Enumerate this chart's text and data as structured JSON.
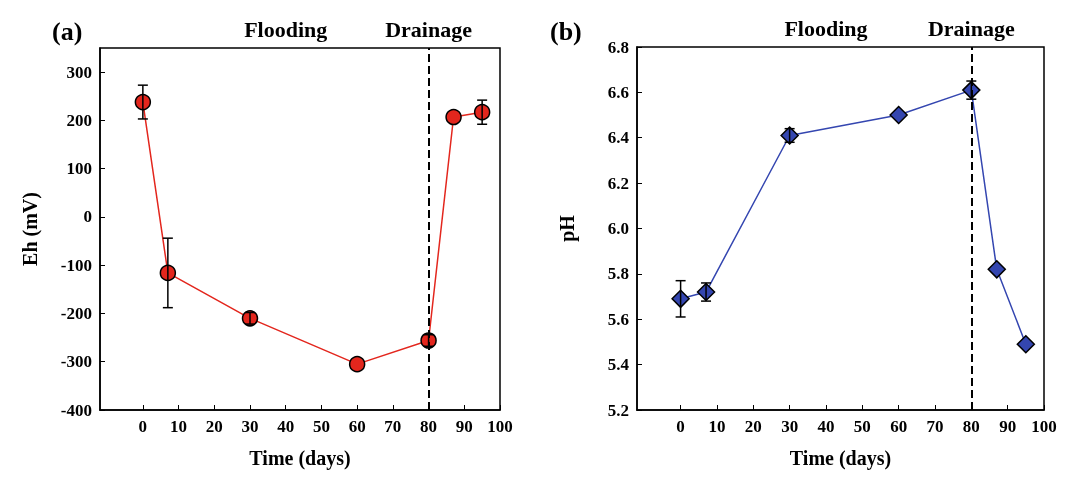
{
  "chart_data": [
    {
      "type": "line",
      "title": "(a)",
      "xlabel": "Time (days)",
      "ylabel": "Eh (mV)",
      "x": [
        0,
        7,
        30,
        60,
        80,
        87,
        95
      ],
      "series": [
        {
          "color": "#e3261d",
          "values": [
            238,
            -116,
            -210,
            -305,
            -256,
            207,
            217
          ],
          "errors": [
            35,
            72,
            12,
            null,
            12,
            null,
            25
          ]
        }
      ],
      "xlim": [
        -12,
        100
      ],
      "xticks": [
        0,
        10,
        20,
        30,
        40,
        50,
        60,
        70,
        80,
        90,
        100
      ],
      "ylim": [
        -400,
        350
      ],
      "yticks": [
        -400,
        -300,
        -200,
        -100,
        0,
        100,
        200,
        300
      ],
      "ref_lines": [
        {
          "axis": "x",
          "value": 80,
          "label": "Drainage",
          "line_style": "dashed",
          "color": "#000000"
        }
      ],
      "annotations": [
        "Flooding"
      ],
      "marker": "circle",
      "grid": false
    },
    {
      "type": "line",
      "title": "(b)",
      "xlabel": "Time (days)",
      "ylabel": "pH",
      "x": [
        0,
        7,
        30,
        60,
        80,
        87,
        95
      ],
      "series": [
        {
          "color": "#3446b0",
          "values": [
            5.69,
            5.72,
            6.41,
            6.5,
            6.61,
            5.82,
            5.49
          ],
          "errors": [
            0.08,
            0.04,
            0.03,
            null,
            0.04,
            null,
            null
          ]
        }
      ],
      "xlim": [
        -12,
        100
      ],
      "xticks": [
        0,
        10,
        20,
        30,
        40,
        50,
        60,
        70,
        80,
        90,
        100
      ],
      "ylim": [
        5.2,
        6.8
      ],
      "yticks": [
        5.2,
        5.4,
        5.6,
        5.8,
        {
          "value": 6,
          "label": "6.0"
        },
        6.2,
        6.4,
        6.6,
        6.8
      ],
      "ref_lines": [
        {
          "axis": "x",
          "value": 80,
          "label": "Drainage",
          "line_style": "dashed",
          "color": "#000000"
        }
      ],
      "annotations": [
        "Flooding"
      ],
      "marker": "diamond",
      "grid": false
    }
  ]
}
